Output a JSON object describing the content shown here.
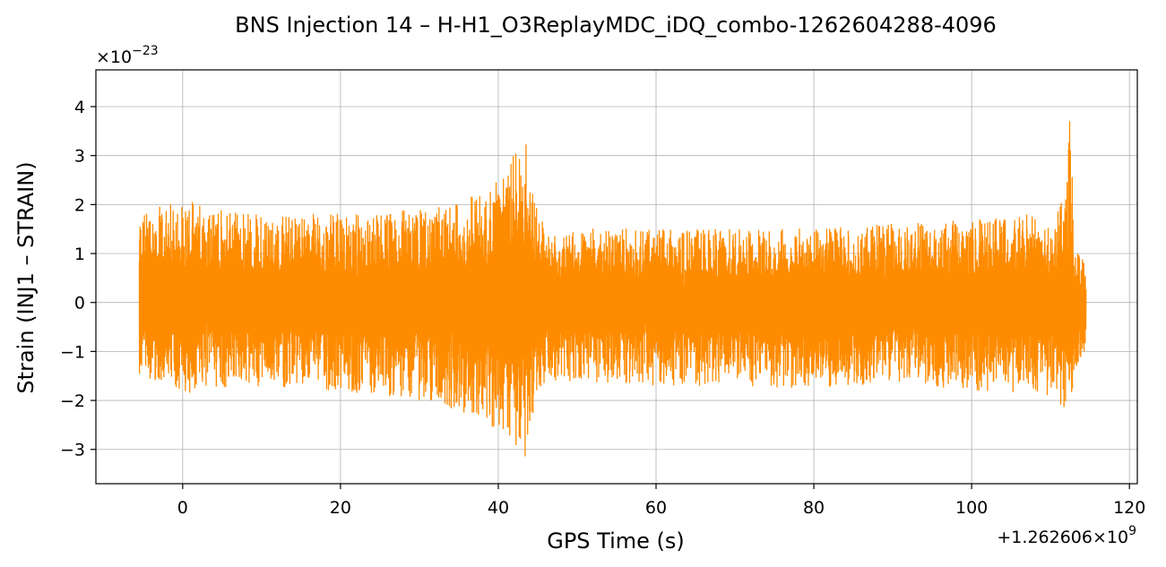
{
  "chart_data": {
    "type": "line",
    "title": "BNS Injection 14 – H-H1_O3ReplayMDC_iDQ_combo-1262604288-4096",
    "xlabel": "GPS Time (s)",
    "ylabel": "Strain (INJ1 – STRAIN)",
    "x_offset_label": "+1.262606×10",
    "x_offset_exp": "9",
    "y_scale_label": "×10",
    "y_scale_exp": "−23",
    "xlim": [
      -11,
      121
    ],
    "ylim": [
      -3.7,
      4.75
    ],
    "x_ticks": [
      0,
      20,
      40,
      60,
      80,
      100,
      120
    ],
    "x_tick_labels": [
      "0",
      "20",
      "40",
      "60",
      "80",
      "100",
      "120"
    ],
    "y_ticks": [
      -3,
      -2,
      -1,
      0,
      1,
      2,
      3,
      4
    ],
    "y_tick_labels": [
      "−3",
      "−2",
      "−1",
      "0",
      "1",
      "2",
      "3",
      "4"
    ],
    "grid": true,
    "series": [
      {
        "color": "#ff8c00",
        "x_start": -5.5,
        "x_end": 114.5,
        "envelope_x": [
          -5.5,
          0,
          10,
          20,
          30,
          35,
          40,
          42,
          44,
          44.5,
          46,
          50,
          60,
          70,
          80,
          90,
          100,
          105,
          110,
          112,
          112.5,
          113,
          114.5
        ],
        "envelope_max": [
          1.85,
          2.1,
          1.8,
          1.8,
          1.9,
          2.0,
          2.6,
          3.0,
          3.35,
          2.4,
          1.4,
          1.5,
          1.5,
          1.5,
          1.5,
          1.6,
          1.7,
          1.9,
          1.7,
          2.2,
          4.35,
          1.2,
          0.75
        ],
        "envelope_min": [
          -1.45,
          -1.85,
          -1.7,
          -1.8,
          -2.0,
          -2.2,
          -2.6,
          -3.0,
          -3.3,
          -2.2,
          -1.6,
          -1.6,
          -1.7,
          -1.7,
          -1.8,
          -1.6,
          -1.8,
          -1.9,
          -1.9,
          -2.3,
          -2.35,
          -1.5,
          -0.9
        ]
      }
    ]
  }
}
